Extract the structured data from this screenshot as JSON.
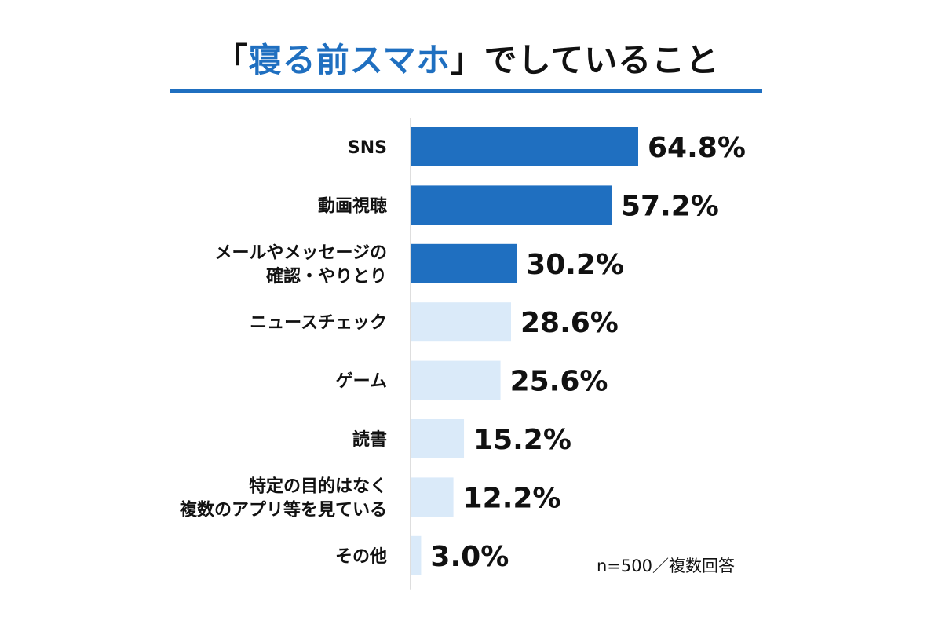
{
  "title": {
    "open": "「",
    "highlight": "寝る前スマホ",
    "close": "」でしていること"
  },
  "note": "n=500／複数回答",
  "colors": {
    "accent": "#1f6fc0",
    "dark_bar": "#1f6fc0",
    "light_bar": "#daeaf9",
    "text": "#111111"
  },
  "chart_data": {
    "type": "bar",
    "orientation": "horizontal",
    "categories": [
      [
        "SNS"
      ],
      [
        "動画視聴"
      ],
      [
        "メールやメッセージの",
        "確認・やりとり"
      ],
      [
        "ニュースチェック"
      ],
      [
        "ゲーム"
      ],
      [
        "読書"
      ],
      [
        "特定の目的はなく",
        "複数のアプリ等を見ている"
      ],
      [
        "その他"
      ]
    ],
    "values": [
      64.8,
      57.2,
      30.2,
      28.6,
      25.6,
      15.2,
      12.2,
      3.0
    ],
    "value_labels": [
      "64.8%",
      "57.2%",
      "30.2%",
      "28.6%",
      "25.6%",
      "15.2%",
      "12.2%",
      "3.0%"
    ],
    "highlight": [
      true,
      true,
      true,
      false,
      false,
      false,
      false,
      false
    ],
    "unit": "%",
    "xlim": [
      0,
      100
    ],
    "grid": false,
    "legend": "none"
  }
}
